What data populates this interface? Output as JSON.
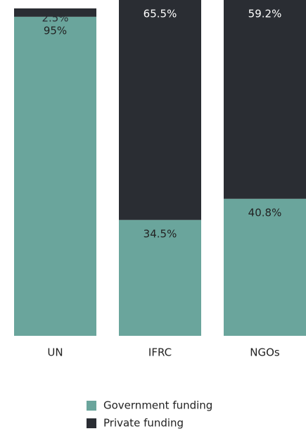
{
  "chart_data": {
    "type": "stacked_bar",
    "categories": [
      "UN",
      "IFRC",
      "NGOs"
    ],
    "series": [
      {
        "name": "Government funding",
        "color": "#6aa59c",
        "values": [
          95,
          34.5,
          40.8
        ]
      },
      {
        "name": "Private funding",
        "color": "#2a2d33",
        "values": [
          2.5,
          65.5,
          59.2
        ]
      }
    ],
    "ylim": [
      0,
      100
    ]
  }
}
